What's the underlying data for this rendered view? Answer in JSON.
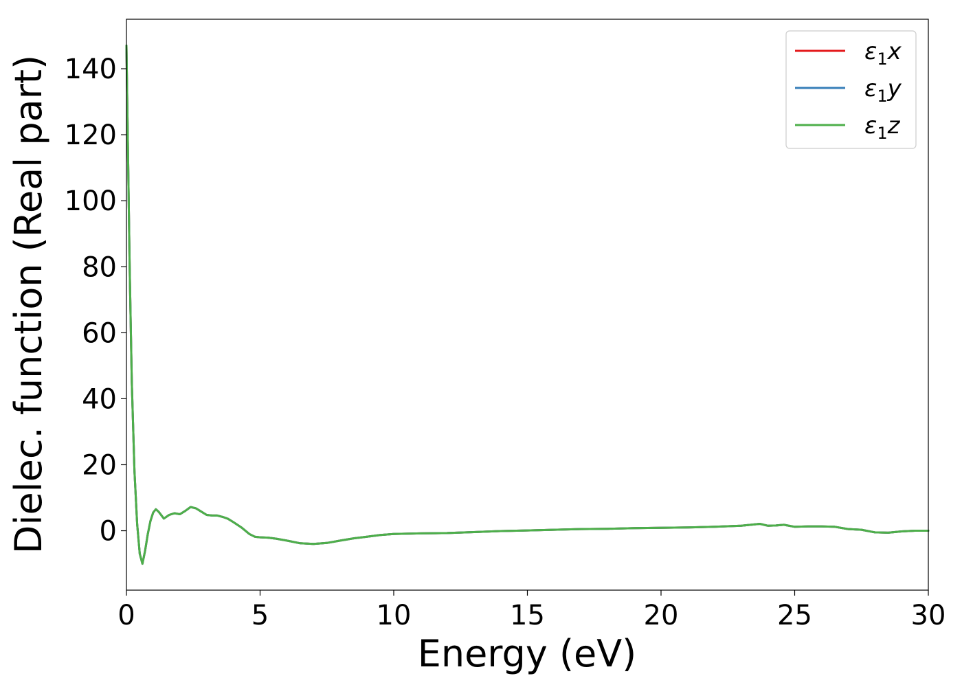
{
  "chart_data": {
    "type": "line",
    "title": "",
    "xlabel": "Energy (eV)",
    "ylabel": "Dielec. function (Real part)",
    "xlim": [
      0,
      30
    ],
    "ylim": [
      -18,
      155
    ],
    "xticks": [
      0,
      5,
      10,
      15,
      20,
      25,
      30
    ],
    "yticks": [
      0,
      20,
      40,
      60,
      80,
      100,
      120,
      140
    ],
    "grid": false,
    "legend_position": "top-right",
    "series": [
      {
        "name": "ε₁x",
        "legend_symbol": "ε",
        "legend_sub": "1",
        "legend_axis": "x",
        "color": "#e41a1c",
        "x": [
          0,
          0.05,
          0.12,
          0.2,
          0.3,
          0.4,
          0.5,
          0.6,
          0.7,
          0.8,
          0.9,
          1.0,
          1.1,
          1.2,
          1.4,
          1.6,
          1.8,
          2.0,
          2.2,
          2.4,
          2.6,
          2.8,
          3.0,
          3.2,
          3.4,
          3.6,
          3.8,
          4.0,
          4.3,
          4.6,
          4.8,
          5.0,
          5.3,
          5.6,
          6.0,
          6.5,
          7.0,
          7.5,
          8.0,
          8.5,
          9.0,
          9.5,
          10,
          11,
          12,
          13,
          14,
          15,
          16,
          17,
          18,
          19,
          20,
          21,
          22,
          23,
          23.7,
          24.0,
          24.3,
          24.6,
          25.0,
          25.5,
          26.0,
          26.5,
          27.0,
          27.5,
          28.0,
          28.5,
          29.0,
          29.5,
          30
        ],
        "y": [
          147,
          120,
          80,
          45,
          18,
          2,
          -7,
          -10,
          -6,
          -1,
          3,
          5.5,
          6.5,
          5.8,
          3.7,
          4.8,
          5.3,
          5.0,
          6.0,
          7.2,
          6.8,
          5.8,
          4.8,
          4.6,
          4.6,
          4.2,
          3.6,
          2.6,
          1.0,
          -1.0,
          -1.8,
          -2.0,
          -2.1,
          -2.4,
          -3.0,
          -3.8,
          -4.0,
          -3.7,
          -3.0,
          -2.3,
          -1.8,
          -1.3,
          -1.0,
          -0.8,
          -0.7,
          -0.4,
          -0.1,
          0.1,
          0.3,
          0.5,
          0.6,
          0.8,
          0.9,
          1.0,
          1.2,
          1.5,
          2.1,
          1.5,
          1.6,
          1.8,
          1.2,
          1.3,
          1.3,
          1.2,
          0.5,
          0.3,
          -0.5,
          -0.6,
          -0.2,
          0.0,
          0.0
        ]
      },
      {
        "name": "ε₁y",
        "legend_symbol": "ε",
        "legend_sub": "1",
        "legend_axis": "y",
        "color": "#377eb8",
        "x": [
          0,
          0.05,
          0.12,
          0.2,
          0.3,
          0.4,
          0.5,
          0.6,
          0.7,
          0.8,
          0.9,
          1.0,
          1.1,
          1.2,
          1.4,
          1.6,
          1.8,
          2.0,
          2.2,
          2.4,
          2.6,
          2.8,
          3.0,
          3.2,
          3.4,
          3.6,
          3.8,
          4.0,
          4.3,
          4.6,
          4.8,
          5.0,
          5.3,
          5.6,
          6.0,
          6.5,
          7.0,
          7.5,
          8.0,
          8.5,
          9.0,
          9.5,
          10,
          11,
          12,
          13,
          14,
          15,
          16,
          17,
          18,
          19,
          20,
          21,
          22,
          23,
          23.7,
          24.0,
          24.3,
          24.6,
          25.0,
          25.5,
          26.0,
          26.5,
          27.0,
          27.5,
          28.0,
          28.5,
          29.0,
          29.5,
          30
        ],
        "y": [
          147,
          120,
          80,
          45,
          18,
          2,
          -7,
          -10,
          -6,
          -1,
          3,
          5.5,
          6.5,
          5.8,
          3.7,
          4.8,
          5.3,
          5.0,
          6.0,
          7.2,
          6.8,
          5.8,
          4.8,
          4.6,
          4.6,
          4.2,
          3.6,
          2.6,
          1.0,
          -1.0,
          -1.8,
          -2.0,
          -2.1,
          -2.4,
          -3.0,
          -3.8,
          -4.0,
          -3.7,
          -3.0,
          -2.3,
          -1.8,
          -1.3,
          -1.0,
          -0.8,
          -0.7,
          -0.4,
          -0.1,
          0.1,
          0.3,
          0.5,
          0.6,
          0.8,
          0.9,
          1.0,
          1.2,
          1.5,
          2.1,
          1.5,
          1.6,
          1.8,
          1.2,
          1.3,
          1.3,
          1.2,
          0.5,
          0.3,
          -0.5,
          -0.6,
          -0.2,
          0.0,
          0.0
        ]
      },
      {
        "name": "ε₁z",
        "legend_symbol": "ε",
        "legend_sub": "1",
        "legend_axis": "z",
        "color": "#4daf4a",
        "x": [
          0,
          0.05,
          0.12,
          0.2,
          0.3,
          0.4,
          0.5,
          0.6,
          0.7,
          0.8,
          0.9,
          1.0,
          1.1,
          1.2,
          1.4,
          1.6,
          1.8,
          2.0,
          2.2,
          2.4,
          2.6,
          2.8,
          3.0,
          3.2,
          3.4,
          3.6,
          3.8,
          4.0,
          4.3,
          4.6,
          4.8,
          5.0,
          5.3,
          5.6,
          6.0,
          6.5,
          7.0,
          7.5,
          8.0,
          8.5,
          9.0,
          9.5,
          10,
          11,
          12,
          13,
          14,
          15,
          16,
          17,
          18,
          19,
          20,
          21,
          22,
          23,
          23.7,
          24.0,
          24.3,
          24.6,
          25.0,
          25.5,
          26.0,
          26.5,
          27.0,
          27.5,
          28.0,
          28.5,
          29.0,
          29.5,
          30
        ],
        "y": [
          147,
          120,
          80,
          45,
          18,
          2,
          -7,
          -10,
          -6,
          -1,
          3,
          5.5,
          6.5,
          5.8,
          3.7,
          4.8,
          5.3,
          5.0,
          6.0,
          7.2,
          6.8,
          5.8,
          4.8,
          4.6,
          4.6,
          4.2,
          3.6,
          2.6,
          1.0,
          -1.0,
          -1.8,
          -2.0,
          -2.1,
          -2.4,
          -3.0,
          -3.8,
          -4.0,
          -3.7,
          -3.0,
          -2.3,
          -1.8,
          -1.3,
          -1.0,
          -0.8,
          -0.7,
          -0.4,
          -0.1,
          0.1,
          0.3,
          0.5,
          0.6,
          0.8,
          0.9,
          1.0,
          1.2,
          1.5,
          2.1,
          1.5,
          1.6,
          1.8,
          1.2,
          1.3,
          1.3,
          1.2,
          0.5,
          0.3,
          -0.5,
          -0.6,
          -0.2,
          0.0,
          0.0
        ]
      }
    ]
  }
}
